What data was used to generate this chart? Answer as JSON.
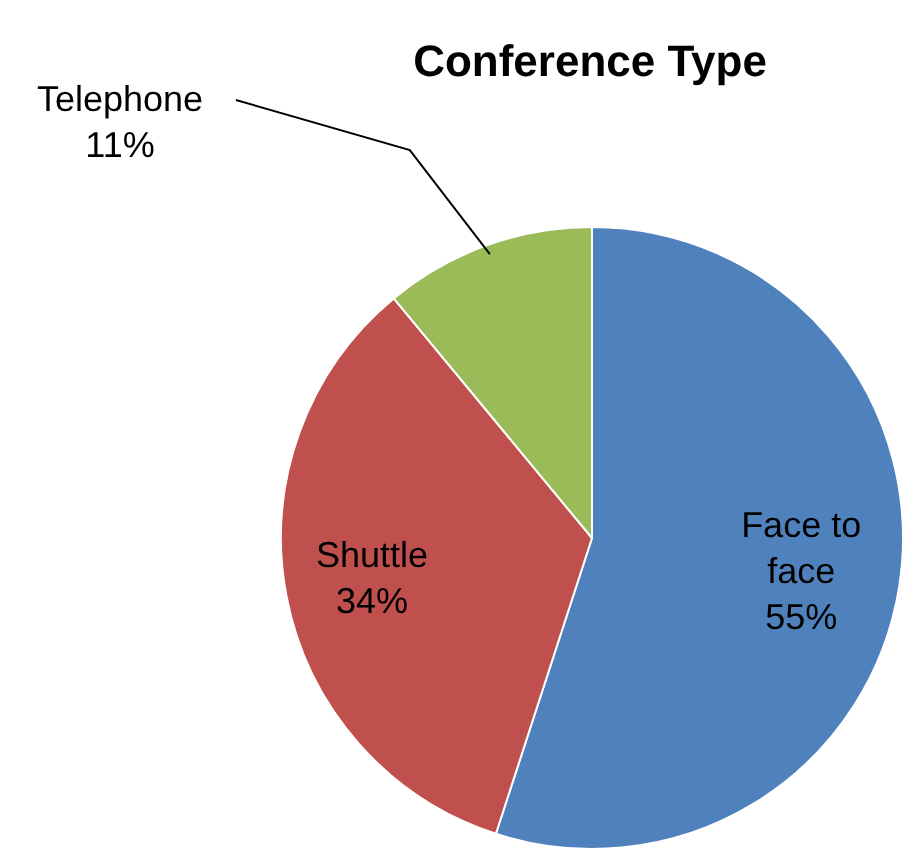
{
  "chart_data": {
    "type": "pie",
    "title": "Conference Type",
    "categories": [
      "Face to face",
      "Shuttle",
      "Telephone"
    ],
    "values": [
      55,
      34,
      11
    ],
    "colors": [
      "#4f81bd",
      "#c0504d",
      "#9bbb59"
    ],
    "value_labels": [
      "55%",
      "34%",
      "11%"
    ],
    "legend": false
  }
}
